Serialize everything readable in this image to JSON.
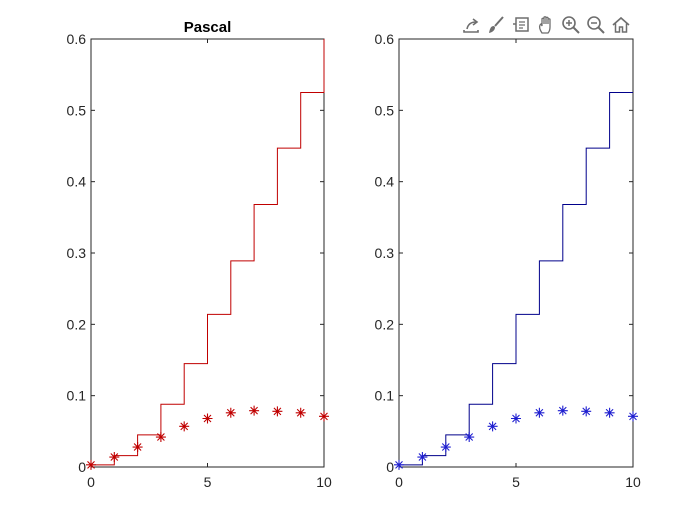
{
  "toolbar": {
    "tools": [
      "export-icon",
      "brush-icon",
      "data-tips-icon",
      "pan-hand-icon",
      "zoom-in-icon",
      "zoom-out-icon",
      "home-icon"
    ]
  },
  "chart_data": [
    {
      "type": "line",
      "title": "Pascal",
      "xlabel": "",
      "ylabel": "",
      "xlim": [
        0,
        10
      ],
      "ylim": [
        0,
        0.6
      ],
      "xticks": [
        0,
        5,
        10
      ],
      "xtick_labels": [
        "0",
        "5",
        "10"
      ],
      "yticks": [
        0,
        0.1,
        0.2,
        0.3,
        0.4,
        0.5,
        0.6
      ],
      "ytick_labels": [
        "0",
        "0.1",
        "0.2",
        "0.3",
        "0.4",
        "0.5",
        "0.6"
      ],
      "grid": false,
      "color": "#c00000",
      "series": [
        {
          "style": "stairs",
          "x": [
            0,
            1,
            2,
            3,
            4,
            5,
            6,
            7,
            8,
            9,
            10
          ],
          "values": [
            0.003,
            0.016,
            0.045,
            0.088,
            0.145,
            0.214,
            0.289,
            0.368,
            0.447,
            0.525,
            0.6
          ]
        },
        {
          "style": "markers",
          "marker": "*",
          "x": [
            0,
            1,
            2,
            3,
            4,
            5,
            6,
            7,
            8,
            9,
            10
          ],
          "values": [
            0.003,
            0.014,
            0.028,
            0.042,
            0.057,
            0.068,
            0.076,
            0.079,
            0.078,
            0.076,
            0.071
          ]
        }
      ]
    },
    {
      "type": "line",
      "title": "",
      "xlabel": "",
      "ylabel": "",
      "xlim": [
        0,
        10
      ],
      "ylim": [
        0,
        0.6
      ],
      "xticks": [
        0,
        5,
        10
      ],
      "xtick_labels": [
        "0",
        "5",
        "10"
      ],
      "yticks": [
        0,
        0.1,
        0.2,
        0.3,
        0.4,
        0.5,
        0.6
      ],
      "ytick_labels": [
        "0",
        "0.1",
        "0.2",
        "0.3",
        "0.4",
        "0.5",
        "0.6"
      ],
      "grid": false,
      "color": "#00008b",
      "series": [
        {
          "style": "stairs",
          "x": [
            0,
            1,
            2,
            3,
            4,
            5,
            6,
            7,
            8,
            9,
            10
          ],
          "values": [
            0.003,
            0.016,
            0.045,
            0.088,
            0.145,
            0.214,
            0.289,
            0.368,
            0.447,
            0.525,
            0.525
          ]
        },
        {
          "style": "markers",
          "marker": "*",
          "color": "#1f1fd0",
          "x": [
            0,
            1,
            2,
            3,
            4,
            5,
            6,
            7,
            8,
            9,
            10
          ],
          "values": [
            0.003,
            0.014,
            0.028,
            0.042,
            0.057,
            0.068,
            0.076,
            0.079,
            0.078,
            0.076,
            0.071
          ]
        }
      ]
    }
  ]
}
